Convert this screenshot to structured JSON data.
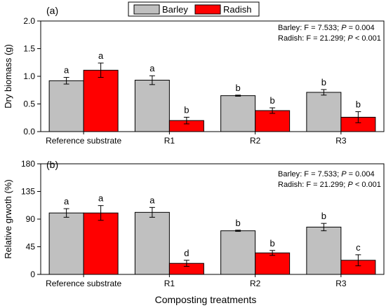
{
  "legend": {
    "items": [
      {
        "label": "Barley",
        "color": "#c0c0c0"
      },
      {
        "label": "Radish",
        "color": "#ff0000"
      }
    ]
  },
  "xlabel": "Composting treatments",
  "chart_data": [
    {
      "type": "bar",
      "panel_label": "(a)",
      "ylabel": "Dry biomass (g)",
      "ylim": [
        0,
        2.0
      ],
      "yticks": [
        "0.0",
        "0.5",
        "1.0",
        "1.5",
        "2.0"
      ],
      "ytick_values": [
        0,
        0.5,
        1.0,
        1.5,
        2.0
      ],
      "categories": [
        "Reference substrate",
        "R1",
        "R2",
        "R3"
      ],
      "series": [
        {
          "name": "Barley",
          "color": "#c0c0c0",
          "values": [
            0.92,
            0.93,
            0.65,
            0.71
          ],
          "errors": [
            0.06,
            0.08,
            0.01,
            0.05
          ],
          "letters": [
            "a",
            "a",
            "b",
            "b"
          ]
        },
        {
          "name": "Radish",
          "color": "#ff0000",
          "values": [
            1.11,
            0.2,
            0.38,
            0.26
          ],
          "errors": [
            0.13,
            0.06,
            0.05,
            0.1
          ],
          "letters": [
            "a",
            "b",
            "b",
            "b"
          ]
        }
      ],
      "stats": [
        {
          "name": "Barley",
          "F": "7.533",
          "P_op": "=",
          "P": "0.004"
        },
        {
          "name": "Radish",
          "F": "21.299",
          "P_op": "<",
          "P": "0.001"
        }
      ]
    },
    {
      "type": "bar",
      "panel_label": "(b)",
      "ylabel": "Relative grwoth (%)",
      "ylim": [
        0,
        180
      ],
      "yticks": [
        "0",
        "45",
        "90",
        "135",
        "180"
      ],
      "ytick_values": [
        0,
        45,
        90,
        135,
        180
      ],
      "categories": [
        "Reference substrate",
        "R1",
        "R2",
        "R3"
      ],
      "series": [
        {
          "name": "Barley",
          "color": "#c0c0c0",
          "values": [
            100,
            101,
            71,
            77
          ],
          "errors": [
            7,
            8,
            1,
            6
          ],
          "letters": [
            "a",
            "a",
            "b",
            "b"
          ]
        },
        {
          "name": "Radish",
          "color": "#ff0000",
          "values": [
            100,
            18,
            35,
            23
          ],
          "errors": [
            12,
            5,
            4,
            9
          ],
          "letters": [
            "a",
            "d",
            "b",
            "c"
          ]
        }
      ],
      "stats": [
        {
          "name": "Barley",
          "F": "7.533",
          "P_op": "=",
          "P": "0.004"
        },
        {
          "name": "Radish",
          "F": "21.299",
          "P_op": "<",
          "P": "0.001"
        }
      ]
    }
  ]
}
